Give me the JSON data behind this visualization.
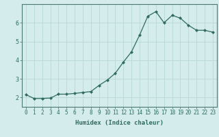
{
  "x": [
    0,
    1,
    2,
    3,
    4,
    5,
    6,
    7,
    8,
    9,
    10,
    11,
    12,
    13,
    14,
    15,
    16,
    17,
    18,
    19,
    20,
    21,
    22,
    23
  ],
  "y": [
    2.15,
    1.95,
    1.95,
    1.97,
    2.18,
    2.18,
    2.22,
    2.27,
    2.32,
    2.65,
    2.93,
    3.3,
    3.9,
    4.45,
    5.35,
    6.35,
    6.6,
    6.0,
    6.4,
    6.25,
    5.87,
    5.6,
    5.6,
    5.5
  ],
  "xlabel": "Humidex (Indice chaleur)",
  "line_color": "#2e6b5e",
  "bg_color": "#d4eceb",
  "grid_color": "#b8d8d5",
  "tick_color": "#2e6b5e",
  "spine_color": "#4a7a70",
  "ylim": [
    1.5,
    7.0
  ],
  "xlim": [
    -0.5,
    23.5
  ],
  "yticks": [
    2,
    3,
    4,
    5,
    6
  ],
  "xticks": [
    0,
    1,
    2,
    3,
    4,
    5,
    6,
    7,
    8,
    9,
    10,
    11,
    12,
    13,
    14,
    15,
    16,
    17,
    18,
    19,
    20,
    21,
    22,
    23
  ],
  "tick_fontsize": 5.5,
  "xlabel_fontsize": 6.5,
  "ytick_fontsize": 6.0
}
